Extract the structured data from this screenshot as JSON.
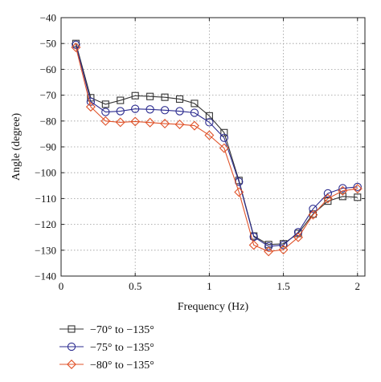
{
  "chart_data": {
    "type": "line",
    "title": "",
    "xlabel": "Frequency (Hz)",
    "ylabel": "Angle (degree)",
    "xlim": [
      0,
      2.05
    ],
    "ylim": [
      -140,
      -40
    ],
    "xticks": [
      0,
      0.5,
      1,
      1.5,
      2
    ],
    "xtick_labels": [
      "0",
      "0.5",
      "1",
      "1.5",
      "2"
    ],
    "yticks": [
      -140,
      -130,
      -120,
      -110,
      -100,
      -90,
      -80,
      -70,
      -60,
      -50,
      -40
    ],
    "ytick_labels": [
      "−140",
      "−130",
      "−120",
      "−110",
      "−100",
      "−90",
      "−80",
      "−70",
      "−60",
      "−50",
      "−40"
    ],
    "grid": true,
    "legend_position": "bottom-left, below plot",
    "x": [
      0.1,
      0.2,
      0.3,
      0.4,
      0.5,
      0.6,
      0.7,
      0.8,
      0.9,
      1.0,
      1.1,
      1.2,
      1.3,
      1.4,
      1.5,
      1.6,
      1.7,
      1.8,
      1.9,
      2.0
    ],
    "series": [
      {
        "name": "−70° to −135°",
        "color": "#333333",
        "marker": "square",
        "values": [
          -50,
          -71,
          -73.5,
          -72,
          -70.2,
          -70.5,
          -70.8,
          -71.5,
          -73.2,
          -78,
          -84.5,
          -103,
          -124.5,
          -127.8,
          -127.5,
          -123.5,
          -116,
          -111,
          -109.2,
          -109.5
        ]
      },
      {
        "name": "−75° to −135°",
        "color": "#2b2b8f",
        "marker": "circle",
        "values": [
          -50.5,
          -72.5,
          -76.5,
          -76.2,
          -75.3,
          -75.5,
          -75.8,
          -76.2,
          -76.8,
          -80.5,
          -86.5,
          -103.5,
          -124.8,
          -128.5,
          -128,
          -123,
          -114,
          -108,
          -106,
          -105.5
        ]
      },
      {
        "name": "−80° to −135°",
        "color": "#e0532a",
        "marker": "diamond",
        "values": [
          -51.5,
          -74.5,
          -80,
          -80.5,
          -80.2,
          -80.6,
          -81,
          -81.3,
          -81.8,
          -85.5,
          -90.5,
          -107.5,
          -128,
          -130.5,
          -129.8,
          -125,
          -116.3,
          -110,
          -107,
          -106.2
        ]
      }
    ]
  }
}
